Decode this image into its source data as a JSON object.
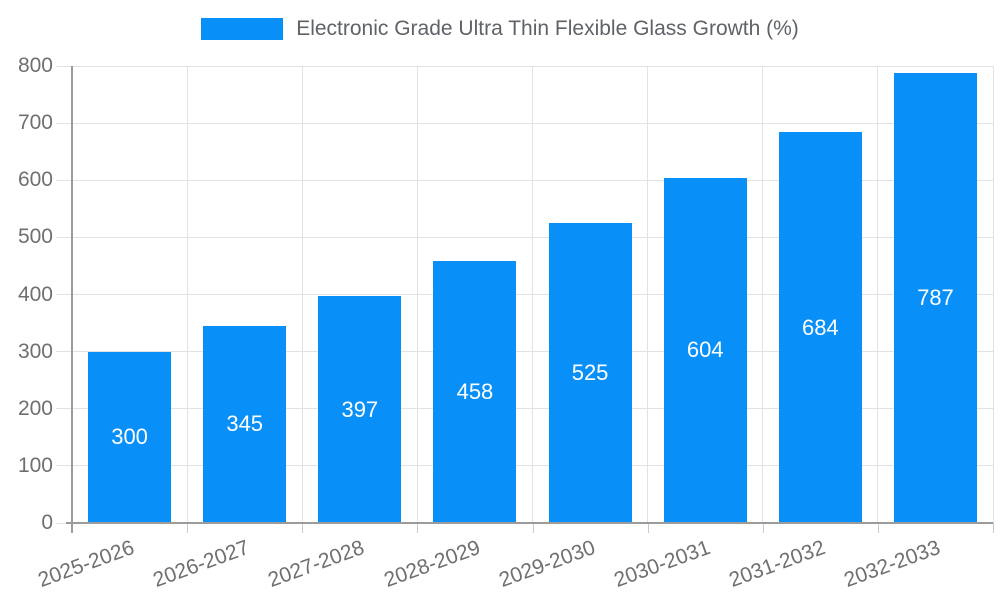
{
  "colors": {
    "bar": "#0990f8",
    "bar_label": "#ffffff",
    "axis_text": "#6f6f6f",
    "legend_text": "#5f6368",
    "gridline": "#e2e2e2",
    "axis_line": "#9b9b9b",
    "tick": "#c9c9c9",
    "background": "#ffffff"
  },
  "chart_data": {
    "type": "bar",
    "title": "Electronic Grade Ultra Thin Flexible Glass Growth (%)",
    "categories": [
      "2025-2026",
      "2026-2027",
      "2027-2028",
      "2028-2029",
      "2029-2030",
      "2030-2031",
      "2031-2032",
      "2032-2033"
    ],
    "series": [
      {
        "name": "Electronic Grade Ultra Thin Flexible Glass Growth (%)",
        "values": [
          300,
          345,
          397,
          458,
          525,
          604,
          684,
          787
        ]
      }
    ],
    "xlabel": "",
    "ylabel": "",
    "ylim": [
      0,
      800
    ],
    "ytick_step": 100,
    "yticks": [
      0,
      100,
      200,
      300,
      400,
      500,
      600,
      700,
      800
    ],
    "grid": true,
    "legend_position": "top",
    "bar_value_labels": true,
    "x_label_rotation_deg": -20
  }
}
